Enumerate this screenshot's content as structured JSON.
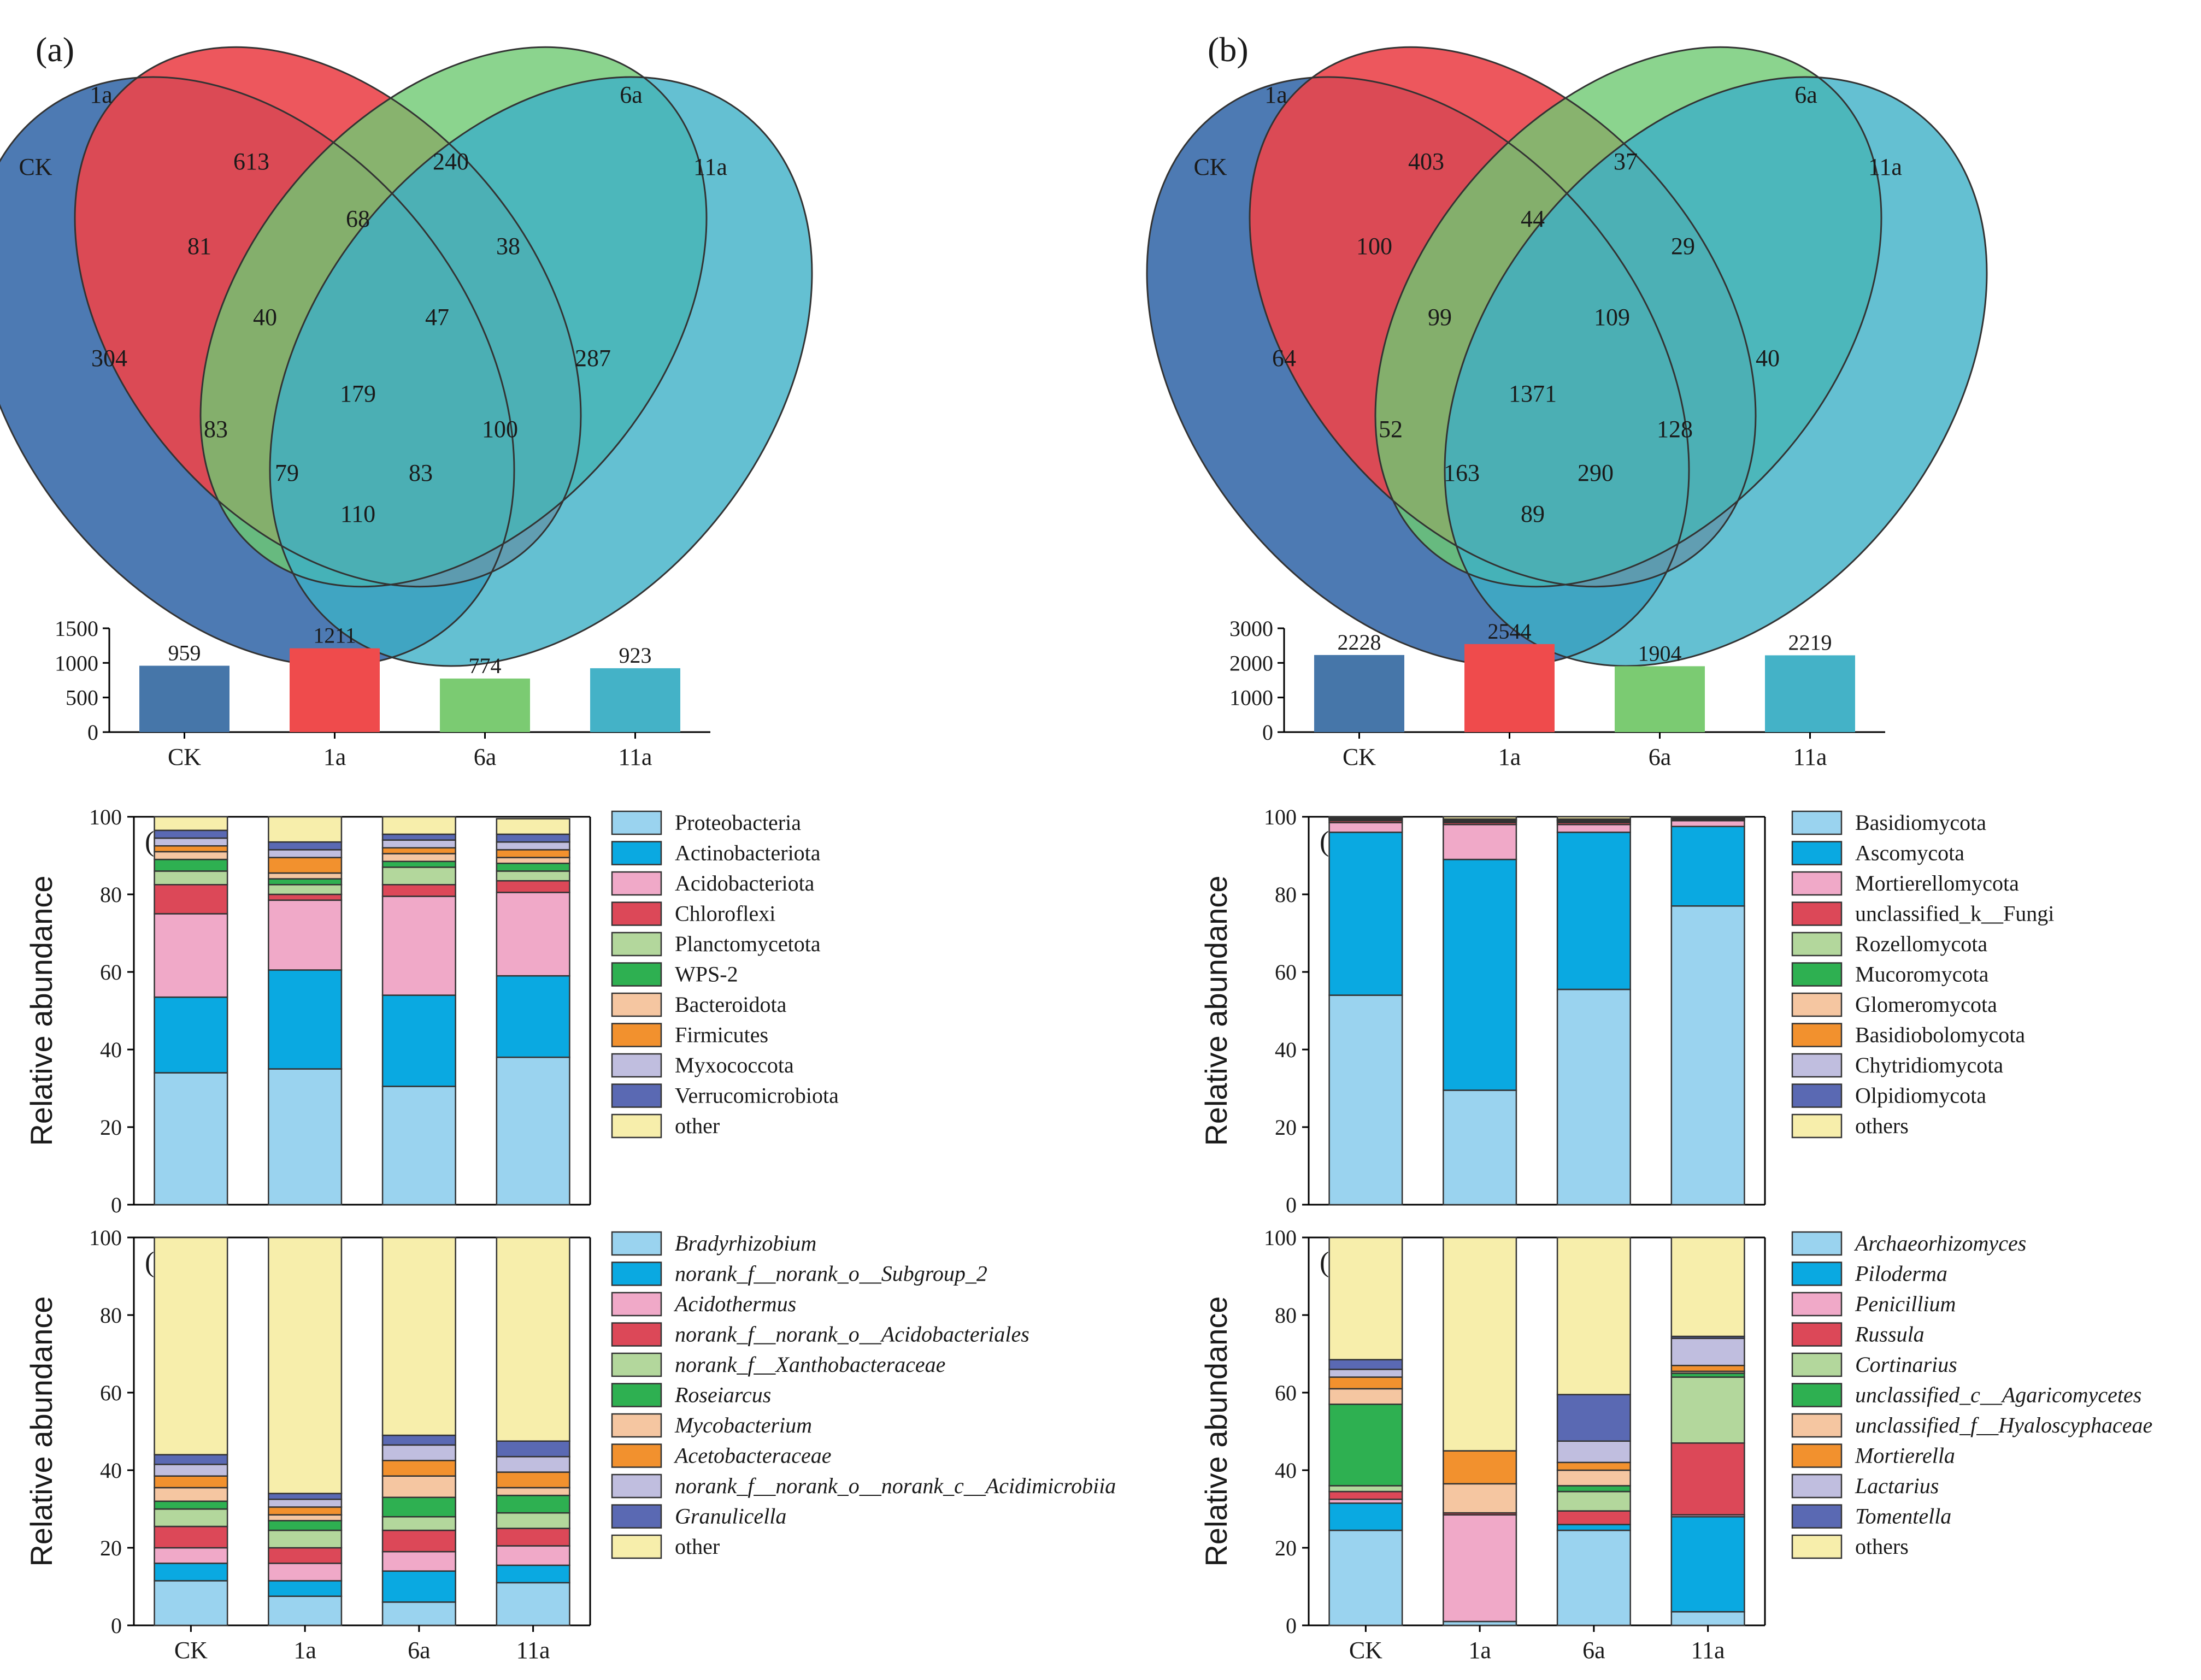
{
  "panels": {
    "a": "(a)",
    "b": "(b)",
    "c": "(c)",
    "d": "(d)",
    "e": "(e)",
    "f": "(f)"
  },
  "venn_a": {
    "sets": [
      "CK",
      "1a",
      "6a",
      "11a"
    ],
    "regions": {
      "CK_only": "304",
      "1a_only": "613",
      "6a_only": "240",
      "11a_only": "287",
      "CK_1a": "81",
      "1a_6a": "68",
      "6a_11a": "38",
      "CK_1a_6a": "40",
      "1a_6a_11a": "47",
      "all": "179",
      "CK_6a": "83",
      "1a_11a": "100",
      "CK_6a_11a": "79",
      "CK_1a_11a": "83",
      "CK_11a": "110"
    }
  },
  "venn_b": {
    "sets": [
      "CK",
      "1a",
      "6a",
      "11a"
    ],
    "regions": {
      "CK_only": "64",
      "1a_only": "403",
      "6a_only": "37",
      "11a_only": "40",
      "CK_1a": "100",
      "1a_6a": "44",
      "6a_11a": "29",
      "CK_1a_6a": "99",
      "1a_6a_11a": "109",
      "all": "1371",
      "CK_6a": "52",
      "1a_11a": "128",
      "CK_6a_11a": "163",
      "CK_1a_11a": "290",
      "CK_11a": "89"
    }
  },
  "colors": {
    "venn": [
      "#2f63a6",
      "#e8252c",
      "#55c05a",
      "#1ba3bd"
    ],
    "bar_totals": [
      "#4676a9",
      "#ef4b4c",
      "#7bcb72",
      "#44b2c7"
    ],
    "stack": [
      "#9ad3ef",
      "#0aa9e1",
      "#f0a9c8",
      "#dc4858",
      "#b3d79c",
      "#2eb051",
      "#f5c6a1",
      "#f2912e",
      "#c0bedf",
      "#5a69b3",
      "#f7eeab"
    ],
    "fungi_f": [
      "#9ad3ef",
      "#0aa9e1",
      "#f0a9c8",
      "#dc4858",
      "#b3d79c",
      "#2eb051",
      "#f5c6a1",
      "#f2912e",
      "#c0bedf",
      "#5a69b3",
      "#f7eeab"
    ]
  },
  "chart_data": [
    {
      "id": "totals_a",
      "type": "bar",
      "categories": [
        "CK",
        "1a",
        "6a",
        "11a"
      ],
      "values": [
        959,
        1211,
        774,
        923
      ],
      "value_labels": [
        "959",
        "1211",
        "774",
        "923"
      ],
      "ylim": [
        0,
        1500
      ],
      "yticks": [
        "0",
        "500",
        "1000",
        "1500"
      ]
    },
    {
      "id": "totals_b",
      "type": "bar",
      "categories": [
        "CK",
        "1a",
        "6a",
        "11a"
      ],
      "values": [
        2228,
        2544,
        1904,
        2219
      ],
      "value_labels": [
        "2228",
        "2544",
        "1904",
        "2219"
      ],
      "ylim": [
        0,
        3000
      ],
      "yticks": [
        "0",
        "1000",
        "2000",
        "3000"
      ]
    },
    {
      "id": "stack_c",
      "type": "bar",
      "stacked": true,
      "ylabel": "Relative abundance",
      "ylim": [
        0,
        100
      ],
      "yticks": [
        "0",
        "20",
        "40",
        "60",
        "80",
        "100"
      ],
      "categories": [
        "CK",
        "1a",
        "6a",
        "11a"
      ],
      "series": [
        {
          "name": "Proteobacteria",
          "values": [
            34,
            35,
            30.5,
            38
          ]
        },
        {
          "name": "Actinobacteriota",
          "values": [
            19.5,
            25.5,
            23.5,
            21
          ]
        },
        {
          "name": "Acidobacteriota",
          "values": [
            21.5,
            18,
            25.5,
            21.5
          ]
        },
        {
          "name": "Chloroflexi",
          "values": [
            7.5,
            1.5,
            3,
            3
          ]
        },
        {
          "name": "Planctomycetota",
          "values": [
            3.5,
            2.5,
            4.5,
            2.5
          ]
        },
        {
          "name": "WPS-2",
          "values": [
            3,
            1.5,
            1.5,
            2
          ]
        },
        {
          "name": "Bacteroidota",
          "values": [
            2,
            1.5,
            2,
            1.5
          ]
        },
        {
          "name": "Firmicutes",
          "values": [
            1.5,
            4,
            1.5,
            2
          ]
        },
        {
          "name": "Myxococcota",
          "values": [
            2,
            2,
            2,
            2
          ]
        },
        {
          "name": "Verrucomicrobiota",
          "values": [
            2,
            2,
            1.5,
            2
          ]
        },
        {
          "name": "other",
          "values": [
            3.5,
            6.5,
            4.5,
            4
          ]
        }
      ]
    },
    {
      "id": "stack_d",
      "type": "bar",
      "stacked": true,
      "ylabel": "Relative abundance",
      "ylim": [
        0,
        100
      ],
      "yticks": [
        "0",
        "20",
        "40",
        "60",
        "80",
        "100"
      ],
      "categories": [
        "CK",
        "1a",
        "6a",
        "11a"
      ],
      "series": [
        {
          "name": "Basidiomycota",
          "values": [
            54,
            29.5,
            55.5,
            77
          ]
        },
        {
          "name": "Ascomycota",
          "values": [
            42,
            59.5,
            40.5,
            20.5
          ]
        },
        {
          "name": "Mortierellomycota",
          "values": [
            2.5,
            9,
            2,
            1.5
          ]
        },
        {
          "name": "unclassified_k__Fungi",
          "values": [
            0.5,
            0.5,
            0.5,
            0.3
          ]
        },
        {
          "name": "Rozellomycota",
          "values": [
            0.3,
            0.3,
            0.3,
            0.2
          ]
        },
        {
          "name": "Mucoromycota",
          "values": [
            0.2,
            0.2,
            0.2,
            0.2
          ]
        },
        {
          "name": "Glomeromycota",
          "values": [
            0.1,
            0.1,
            0.1,
            0.1
          ]
        },
        {
          "name": "Basidiobolomycota",
          "values": [
            0.1,
            0.1,
            0.1,
            0.1
          ]
        },
        {
          "name": "Chytridiomycota",
          "values": [
            0.1,
            0.1,
            0.1,
            0.1
          ]
        },
        {
          "name": "Olpidiomycota",
          "values": [
            0.1,
            0.1,
            0.1,
            0.1
          ]
        },
        {
          "name": "others",
          "values": [
            0.1,
            0.6,
            0.6,
            0.0
          ]
        }
      ]
    },
    {
      "id": "stack_e",
      "type": "bar",
      "stacked": true,
      "ylabel": "Relative abundance",
      "ylim": [
        0,
        100
      ],
      "yticks": [
        "0",
        "20",
        "40",
        "60",
        "80",
        "100"
      ],
      "xlabels": [
        "CK",
        "1a",
        "6a",
        "11a"
      ],
      "categories": [
        "CK",
        "1a",
        "6a",
        "11a"
      ],
      "series": [
        {
          "name": "Bradyrhizobium",
          "italic": true,
          "values": [
            11.5,
            7.5,
            6,
            11
          ]
        },
        {
          "name": "norank_f__norank_o__Subgroup_2",
          "italic": true,
          "values": [
            4.5,
            4,
            8,
            4.5
          ]
        },
        {
          "name": "Acidothermus",
          "italic": true,
          "values": [
            4,
            4.5,
            5,
            5
          ]
        },
        {
          "name": "norank_f__norank_o__Acidobacteriales",
          "italic": true,
          "values": [
            5.5,
            4,
            5.5,
            4.5
          ]
        },
        {
          "name": "norank_f__Xanthobacteraceae",
          "italic": true,
          "values": [
            4.5,
            4.5,
            3.5,
            4
          ]
        },
        {
          "name": "Roseiarcus",
          "italic": true,
          "values": [
            2,
            2.5,
            5,
            4.5
          ]
        },
        {
          "name": "Mycobacterium",
          "italic": true,
          "values": [
            3.5,
            1.5,
            5.5,
            2
          ]
        },
        {
          "name": "Acetobacteraceae",
          "italic": true,
          "values": [
            3,
            2,
            4,
            4
          ]
        },
        {
          "name": "norank_f__norank_o__norank_c__Acidimicrobiia",
          "italic": true,
          "values": [
            3,
            2,
            4,
            4
          ]
        },
        {
          "name": "Granulicella",
          "italic": true,
          "values": [
            2.5,
            1.5,
            2.5,
            4
          ]
        },
        {
          "name": "other",
          "italic": false,
          "values": [
            56,
            66,
            51,
            53
          ]
        }
      ]
    },
    {
      "id": "stack_f",
      "type": "bar",
      "stacked": true,
      "ylabel": "Relative abundance",
      "ylim": [
        0,
        100
      ],
      "yticks": [
        "0",
        "20",
        "40",
        "60",
        "80",
        "100"
      ],
      "xlabels": [
        "CK",
        "1a",
        "6a",
        "11a"
      ],
      "categories": [
        "CK",
        "1a",
        "6a",
        "11a"
      ],
      "series": [
        {
          "name": "Archaeorhizomyces",
          "italic": true,
          "values": [
            24.5,
            1,
            24.5,
            3.5
          ]
        },
        {
          "name": "Piloderma",
          "italic": true,
          "values": [
            7,
            0,
            1.5,
            24.5
          ]
        },
        {
          "name": "Penicillium",
          "italic": true,
          "values": [
            1,
            27.5,
            0,
            0.5
          ]
        },
        {
          "name": "Russula",
          "italic": true,
          "values": [
            2,
            0.5,
            3.5,
            18.5
          ]
        },
        {
          "name": "Cortinarius",
          "italic": true,
          "values": [
            1.5,
            0,
            5,
            17
          ]
        },
        {
          "name": "unclassified_c__Agaricomycetes",
          "italic": true,
          "values": [
            21,
            0,
            1.5,
            1
          ]
        },
        {
          "name": "unclassified_f__Hyaloscyphaceae",
          "italic": true,
          "values": [
            4,
            7.5,
            4,
            0.5
          ]
        },
        {
          "name": "Mortierella",
          "italic": true,
          "values": [
            3,
            8.5,
            2,
            1.5
          ]
        },
        {
          "name": "Lactarius",
          "italic": true,
          "values": [
            2,
            0,
            5.5,
            7
          ]
        },
        {
          "name": "Tomentella",
          "italic": true,
          "values": [
            2.5,
            0,
            12,
            0.5
          ]
        },
        {
          "name": "others",
          "italic": false,
          "values": [
            31.5,
            55,
            40.5,
            25.5
          ]
        }
      ]
    }
  ]
}
